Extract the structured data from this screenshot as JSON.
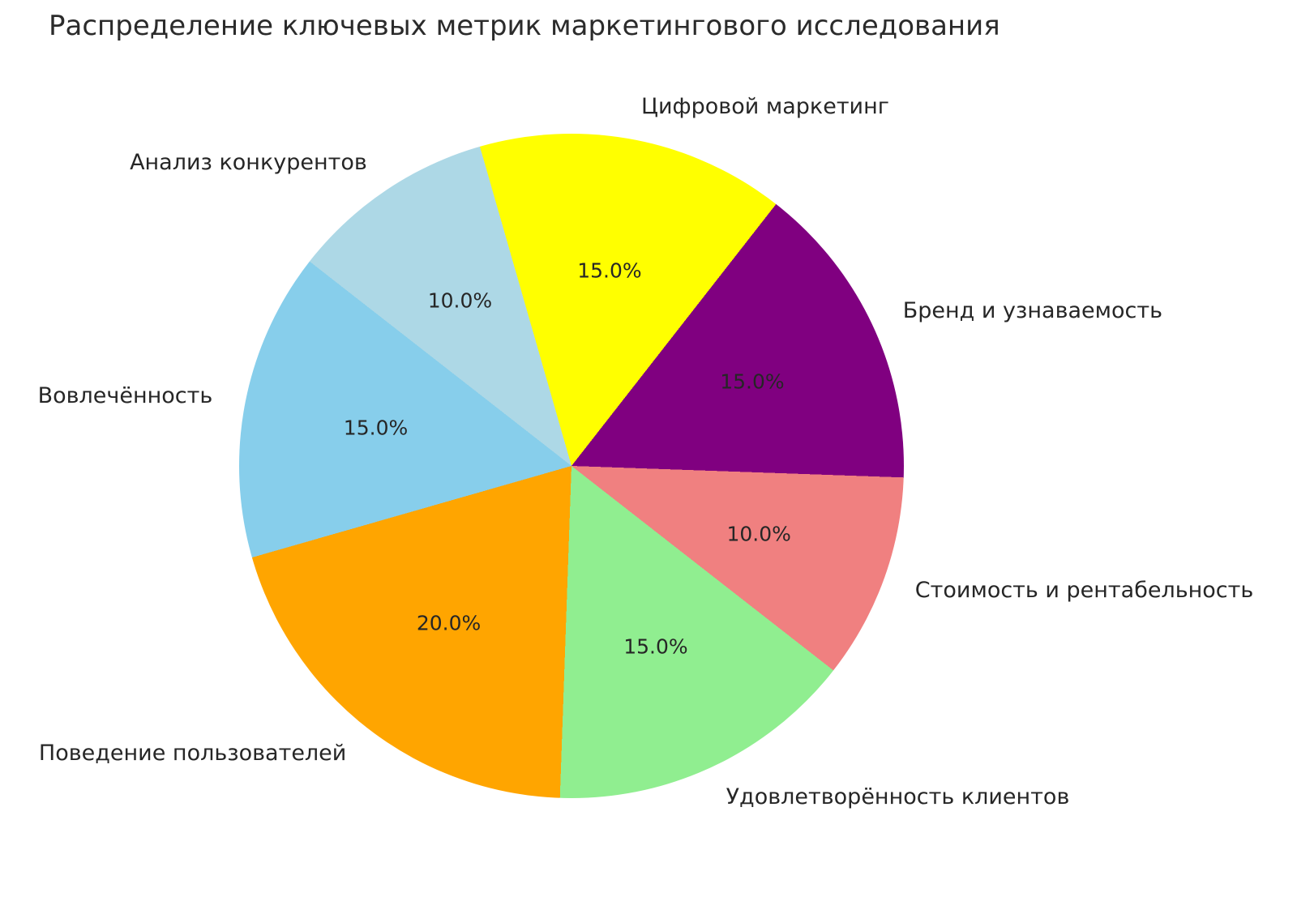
{
  "title": "Распределение ключевых метрик маркетингового исследования",
  "chart_data": {
    "type": "pie",
    "title": "Распределение ключевых метрик маркетингового исследования",
    "labels": [
      "Цифровой маркетинг",
      "Бренд и узнаваемость",
      "Стоимость и рентабельность",
      "Удовлетворённость клиентов",
      "Поведение пользователей",
      "Вовлечённость",
      "Анализ конкурентов"
    ],
    "values": [
      15,
      15,
      10,
      15,
      20,
      15,
      10
    ],
    "percent_labels": [
      "15.0%",
      "15.0%",
      "10.0%",
      "15.0%",
      "20.0%",
      "15.0%",
      "10.0%"
    ],
    "colors": [
      "#FFFF00",
      "#800080",
      "#F08080",
      "#90EE90",
      "#FFA500",
      "#87CEEB",
      "#ADD8E6"
    ],
    "start_angle_deg": -16,
    "direction": "clockwise",
    "label_distance": 1.1,
    "pct_distance": 0.6,
    "legend": "none",
    "grid": "off",
    "text_color": "#262626"
  }
}
